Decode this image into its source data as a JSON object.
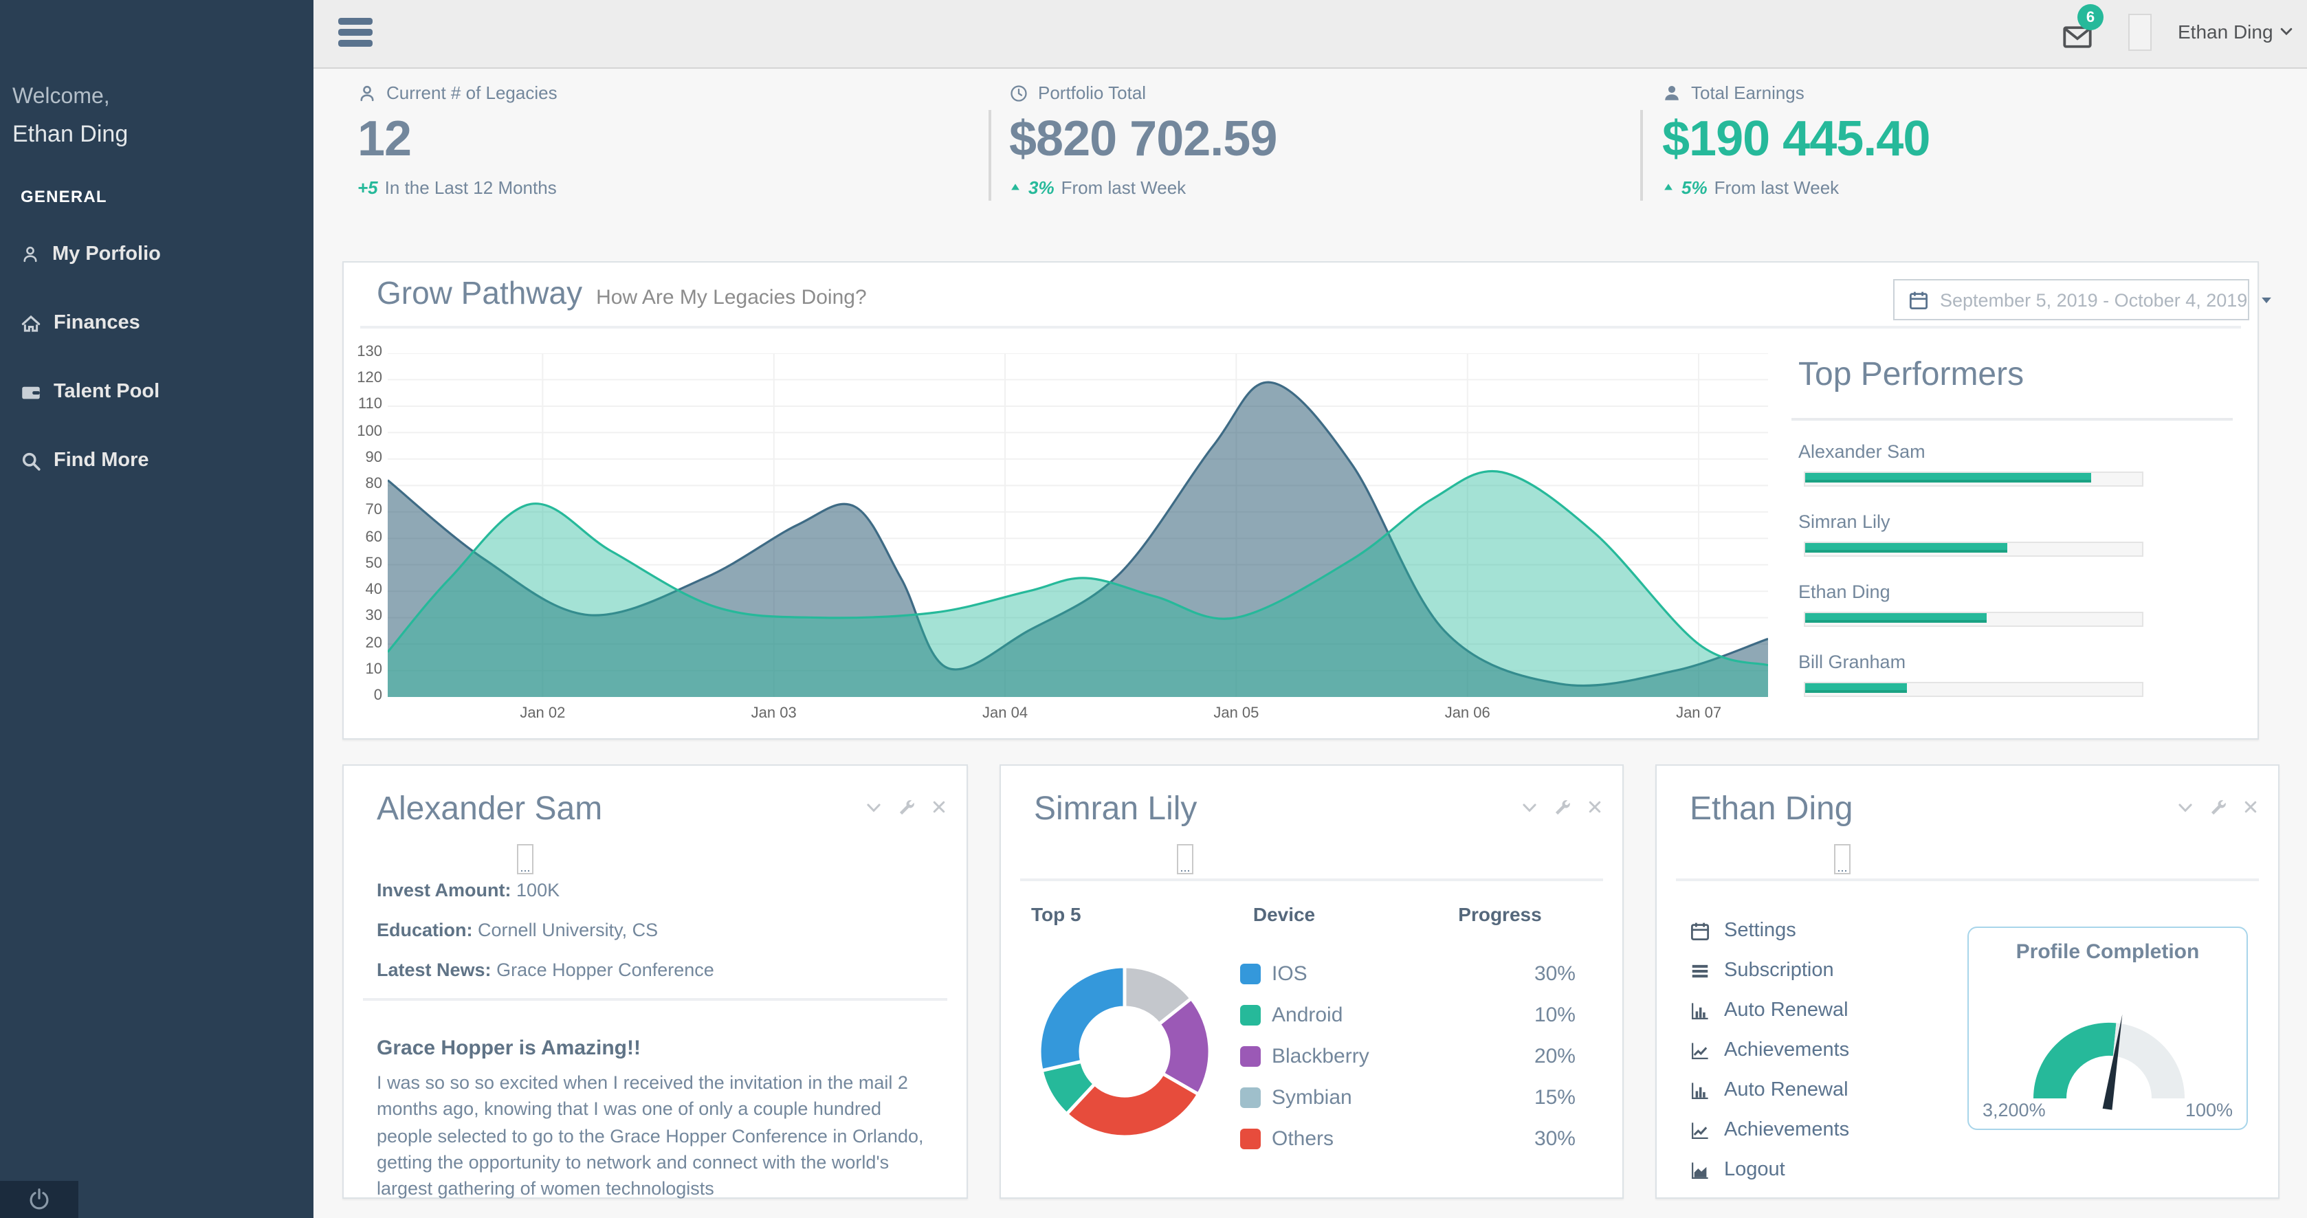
{
  "sidebar": {
    "welcome_label": "Welcome,",
    "user_name": "Ethan Ding",
    "section_label": "GENERAL",
    "items": [
      {
        "icon": "user-outline-icon",
        "label": "My Porfolio"
      },
      {
        "icon": "home-icon",
        "label": "Finances"
      },
      {
        "icon": "wallet-icon",
        "label": "Talent Pool"
      },
      {
        "icon": "search-icon",
        "label": "Find More"
      }
    ]
  },
  "topbar": {
    "messages_badge": "6",
    "user_name": "Ethan Ding"
  },
  "stats": [
    {
      "icon": "user-outline-icon",
      "label": "Current # of Legacies",
      "value": "12",
      "delta": "+5",
      "note": "In the Last 12 Months"
    },
    {
      "icon": "clock-icon",
      "label": "Portfolio Total",
      "value": "$820 702.59",
      "delta": "3%",
      "note": "From last Week"
    },
    {
      "icon": "user-filled-icon",
      "label": "Total Earnings",
      "value": "$190 445.40",
      "delta": "5%",
      "note": "From last Week"
    }
  ],
  "grow_panel": {
    "title": "Grow Pathway",
    "subtitle": "How Are My Legacies Doing?",
    "date_range": "September 5, 2019 - October 4, 2019"
  },
  "top_performers": {
    "title": "Top Performers"
  },
  "chart_data": {
    "grow_pathway": {
      "type": "area",
      "title": "Grow Pathway",
      "x_domain": [
        1.33,
        7.3
      ],
      "x_tick_positions": [
        2,
        3,
        4,
        5,
        6,
        7
      ],
      "x_tick_labels": [
        "Jan 02",
        "Jan 03",
        "Jan 04",
        "Jan 05",
        "Jan 06",
        "Jan 07"
      ],
      "y_ticks": [
        0,
        10,
        20,
        30,
        40,
        50,
        60,
        70,
        80,
        90,
        100,
        110,
        120,
        130
      ],
      "ylim": [
        0,
        130
      ],
      "grid": true,
      "series": [
        {
          "name": "series-steel",
          "stroke": "#3E6B85",
          "fill": "rgba(40,88,114,0.52)",
          "points": [
            [
              1.33,
              82
            ],
            [
              1.75,
              52
            ],
            [
              2.2,
              31
            ],
            [
              2.7,
              45
            ],
            [
              3.1,
              65
            ],
            [
              3.35,
              72
            ],
            [
              3.55,
              45
            ],
            [
              3.75,
              11
            ],
            [
              4.1,
              25
            ],
            [
              4.5,
              47
            ],
            [
              4.9,
              95
            ],
            [
              5.15,
              119
            ],
            [
              5.5,
              88
            ],
            [
              5.9,
              25
            ],
            [
              6.4,
              5
            ],
            [
              6.9,
              10
            ],
            [
              7.3,
              22
            ]
          ]
        },
        {
          "name": "series-teal",
          "stroke": "#26B99A",
          "fill": "rgba(38,185,154,0.42)",
          "points": [
            [
              1.33,
              17
            ],
            [
              1.6,
              45
            ],
            [
              1.95,
              73
            ],
            [
              2.3,
              55
            ],
            [
              2.75,
              34
            ],
            [
              3.2,
              30
            ],
            [
              3.7,
              32
            ],
            [
              4.1,
              40
            ],
            [
              4.35,
              45
            ],
            [
              4.65,
              38
            ],
            [
              5.0,
              30
            ],
            [
              5.5,
              52
            ],
            [
              5.85,
              75
            ],
            [
              6.15,
              85
            ],
            [
              6.55,
              62
            ],
            [
              7.0,
              20
            ],
            [
              7.3,
              12
            ]
          ]
        }
      ]
    },
    "top_performers_bars": {
      "type": "bar",
      "categories": [
        "Alexander Sam",
        "Simran Lily",
        "Ethan Ding",
        "Bill Granham"
      ],
      "values": [
        85,
        60,
        54,
        30
      ],
      "unit": "%",
      "color": "#26B99A"
    },
    "device_donut": {
      "type": "pie",
      "table_headers": [
        "Top 5",
        "Device",
        "Progress"
      ],
      "items": [
        {
          "label": "IOS",
          "value": "30%",
          "pct": 30,
          "color": "#3498DB"
        },
        {
          "label": "Android",
          "value": "10%",
          "pct": 10,
          "color": "#26B99A"
        },
        {
          "label": "Blackberry",
          "value": "20%",
          "pct": 20,
          "color": "#9B59B6"
        },
        {
          "label": "Symbian",
          "value": "15%",
          "pct": 15,
          "color": "#9FBFCB",
          "donut_color": "#C4C7CC"
        },
        {
          "label": "Others",
          "value": "30%",
          "pct": 30,
          "color": "#E74C3C"
        }
      ],
      "donut_order": [
        "Symbian",
        "Blackberry",
        "Others",
        "Android",
        "IOS"
      ]
    },
    "profile_gauge": {
      "type": "gauge",
      "title": "Profile Completion",
      "left_label": "3,200%",
      "right_label": "100%",
      "fraction": 0.53,
      "color": "#26B99A",
      "track_color": "#E9EDEF",
      "needle_color": "#1F2D3A"
    }
  },
  "cards": [
    {
      "title": "Alexander Sam",
      "image_placeholder": "...",
      "fields": [
        {
          "label": "Invest Amount:",
          "value": "100K"
        },
        {
          "label": "Education:",
          "value": "Cornell University, CS"
        },
        {
          "label": "Latest News:",
          "value": "Grace Hopper Conference"
        }
      ],
      "post_title": "Grace Hopper is Amazing!!",
      "post_body": "I was so so so excited when I received the invitation in the mail 2 months ago, knowing that I was one of only a couple hundred people selected to go to the Grace Hopper Conference in Orlando, getting the opportunity to network and connect with the world's largest gathering of women technologists"
    },
    {
      "title": "Simran Lily",
      "image_placeholder": "..."
    },
    {
      "title": "Ethan Ding",
      "image_placeholder": "...",
      "menu": [
        {
          "icon": "calendar-icon",
          "label": "Settings"
        },
        {
          "icon": "list-icon",
          "label": "Subscription"
        },
        {
          "icon": "bar-chart-icon",
          "label": "Auto Renewal"
        },
        {
          "icon": "line-chart-icon",
          "label": "Achievements"
        },
        {
          "icon": "bar-chart-icon",
          "label": "Auto Renewal"
        },
        {
          "icon": "line-chart-icon",
          "label": "Achievements"
        },
        {
          "icon": "area-chart-icon",
          "label": "Logout"
        }
      ]
    }
  ],
  "colors": {
    "accent_green": "#26B99A",
    "sidebar_bg": "#2A3F54",
    "title_text": "#73879C"
  }
}
